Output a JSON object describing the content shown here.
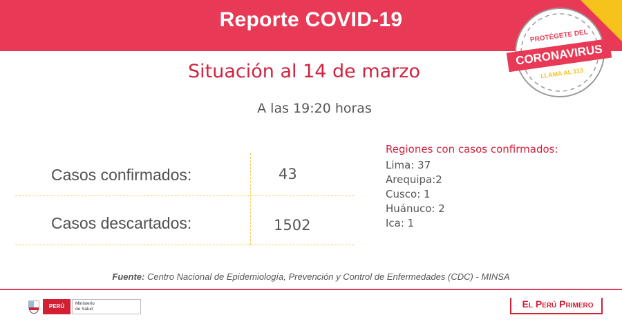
{
  "header": {
    "title": "Reporte COVID-19",
    "bar_color": "#e83a57",
    "corner_color": "#f6c21c"
  },
  "badge": {
    "line1": "PROTÉGETE DEL",
    "line2": "CORONAVIRUS",
    "line3": "LLAMA AL 113"
  },
  "report": {
    "subtitle": "Situación al 14 de marzo",
    "time": "A las 19:20 horas"
  },
  "stats": [
    {
      "label": "Casos confirmados:",
      "value": "43"
    },
    {
      "label": "Casos descartados:",
      "value": "1502"
    }
  ],
  "regions": {
    "title": "Regiones con casos confirmados:",
    "items": [
      "Lima: 37",
      "Arequipa:2",
      "Cusco: 1",
      "Huánuco: 2",
      "Ica: 1"
    ]
  },
  "source": {
    "prefix": "Fuente:",
    "text": " Centro Nacional de Epidemiología, Prevención y Control de Enfermedades (CDC) - MINSA"
  },
  "footer": {
    "country": "PERÚ",
    "ministry_line1": "Ministerio",
    "ministry_line2": "de Salud",
    "brand": "El Perú Primero"
  }
}
